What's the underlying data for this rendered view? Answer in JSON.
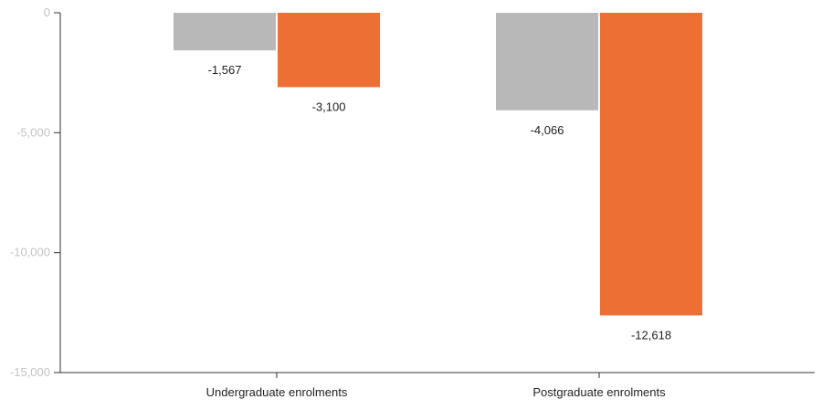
{
  "chart_data": {
    "type": "bar",
    "title": "",
    "xlabel": "",
    "ylabel": "",
    "categories": [
      "Undergraduate enrolments",
      "Postgraduate enrolments"
    ],
    "series": [
      {
        "values": [
          -1567,
          -4066
        ],
        "color": "#b8b8b8"
      },
      {
        "values": [
          -3100,
          -12618
        ],
        "color": "#ee6f33"
      }
    ],
    "data_labels": [
      [
        "-1,567",
        "-4,066"
      ],
      [
        "-3,100",
        "-12,618"
      ]
    ],
    "yticks": [
      0,
      -5000,
      -10000,
      -15000
    ],
    "ytick_labels": [
      "0",
      "-5,000",
      "-10,000",
      "-15,000"
    ],
    "ylim": [
      -15000,
      0
    ],
    "grid": false,
    "legend": "none"
  }
}
